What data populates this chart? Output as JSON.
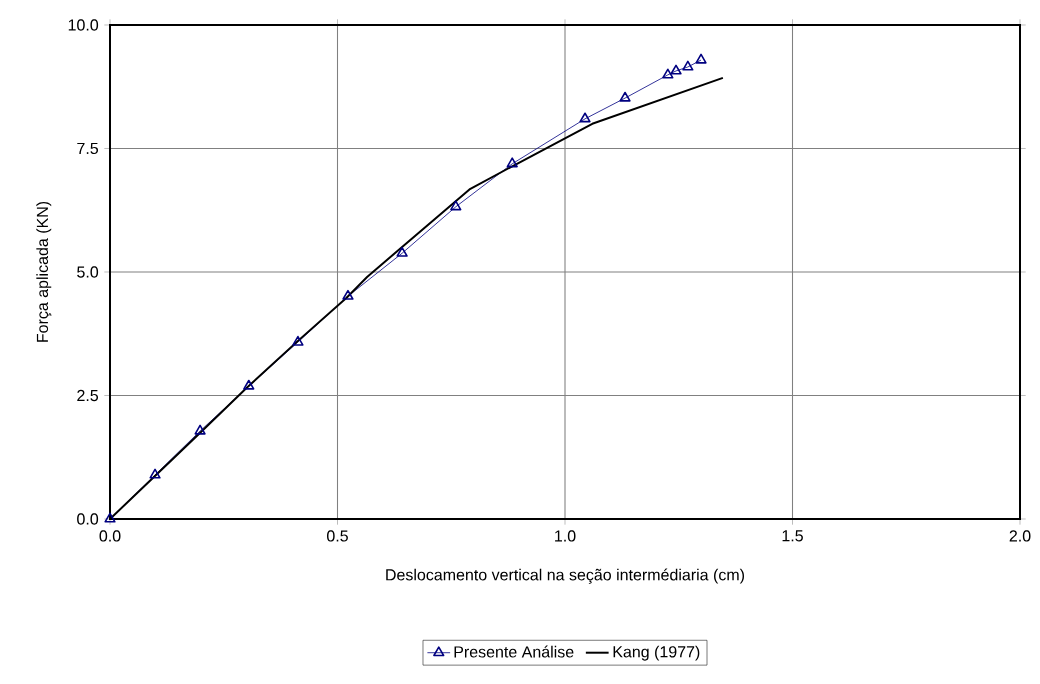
{
  "chart_data": {
    "type": "line",
    "xlabel": "Deslocamento vertical na seção intermédiaria (cm)",
    "ylabel": "Força aplicada (KN)",
    "xlim": [
      0,
      2
    ],
    "ylim": [
      0,
      10
    ],
    "xticks": [
      {
        "value": 0,
        "label": "0.0"
      },
      {
        "value": 0.5,
        "label": "0.5"
      },
      {
        "value": 1,
        "label": "1.0"
      },
      {
        "value": 1.5,
        "label": "1.5"
      },
      {
        "value": 2,
        "label": "2.0"
      }
    ],
    "yticks": [
      {
        "value": 0,
        "label": "0.0"
      },
      {
        "value": 2.5,
        "label": "2.5"
      },
      {
        "value": 5,
        "label": "5.0"
      },
      {
        "value": 7.5,
        "label": "7.5"
      },
      {
        "value": 10,
        "label": "10.0"
      }
    ],
    "grid": true,
    "legend": "bottom",
    "series": [
      {
        "name": "Presente Análise",
        "color": "#000080",
        "marker": "triangle",
        "x": [
          0,
          0.099,
          0.198,
          0.305,
          0.413,
          0.523,
          0.642,
          0.76,
          0.884,
          1.044,
          1.132,
          1.226,
          1.244,
          1.27,
          1.299
        ],
        "values": [
          0,
          0.89,
          1.78,
          2.69,
          3.58,
          4.51,
          5.38,
          6.32,
          7.19,
          8.1,
          8.52,
          8.99,
          9.07,
          9.15,
          9.29
        ]
      },
      {
        "name": "Kang (1977)",
        "color": "#000000",
        "marker": "none",
        "x": [
          0,
          0.1,
          0.2,
          0.3,
          0.41,
          0.52,
          0.565,
          0.79,
          0.88,
          1.06,
          1.347
        ],
        "values": [
          0,
          0.88,
          1.76,
          2.65,
          3.58,
          4.48,
          4.9,
          6.67,
          7.12,
          8.0,
          8.93
        ]
      }
    ]
  }
}
